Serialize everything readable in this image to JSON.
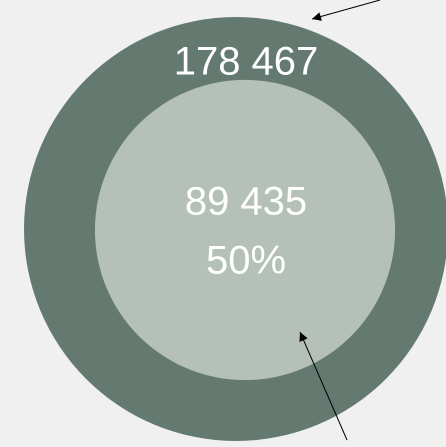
{
  "chart_data": {
    "type": "circles",
    "values": [
      178467,
      89435
    ],
    "value_labels": [
      "178 467",
      "89 435"
    ],
    "share": 50,
    "share_label": "50%",
    "colors": [
      "#647a70",
      "#b5c0b8"
    ]
  }
}
